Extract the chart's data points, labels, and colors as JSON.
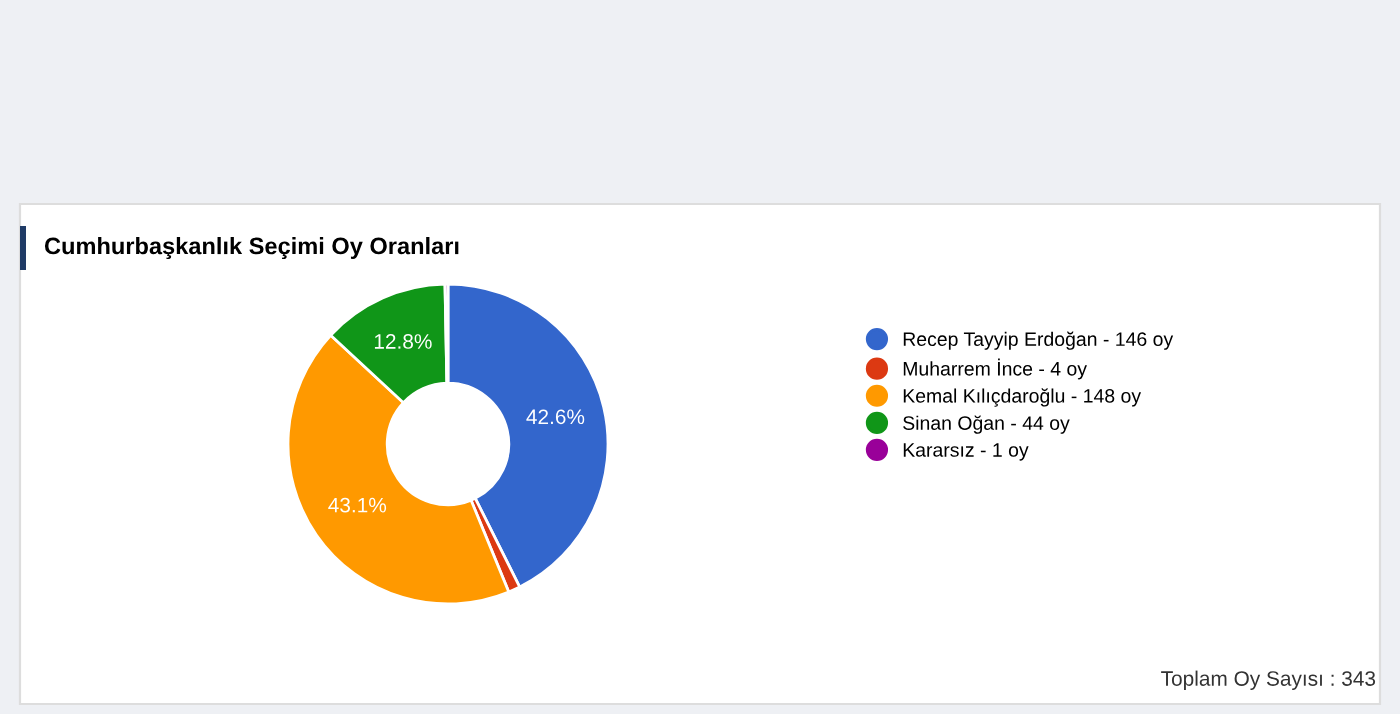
{
  "chart_data": {
    "type": "donut",
    "title": "Cumhurbaşkanlık Seçimi Oy Oranları",
    "categories": [
      "Recep Tayyip Erdoğan - 146 oy",
      "Muharrem İnce - 4 oy",
      "Kemal Kılıçdaroğlu - 148 oy",
      "Sinan Oğan - 44 oy",
      "Kararsız - 1 oy"
    ],
    "values": [
      42.6,
      1.2,
      43.1,
      12.8,
      0.3
    ],
    "colors": [
      "#3366cc",
      "#dc3912",
      "#ff9900",
      "#109618",
      "#990099"
    ],
    "value_labels": [
      "42.6%",
      null,
      "43.1%",
      "12.8%",
      null
    ],
    "legend": "right",
    "annotations": [
      "Toplam Oy Sayısı : 343"
    ]
  }
}
